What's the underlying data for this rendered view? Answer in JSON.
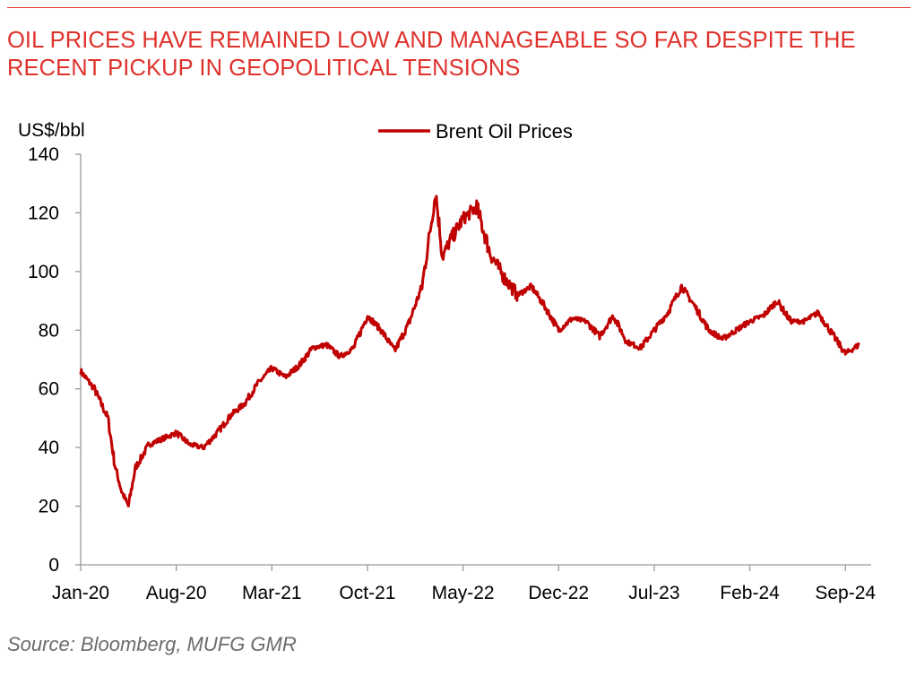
{
  "header": {
    "title": "OIL PRICES HAVE REMAINED LOW AND MANAGEABLE SO FAR DESPITE THE RECENT PICKUP IN GEOPOLITICAL TENSIONS"
  },
  "footer": {
    "source": "Source: Bloomberg, MUFG GMR"
  },
  "colors": {
    "accent": "#e0312b",
    "series": "#c00000",
    "axis": "#999999"
  },
  "chart_data": {
    "type": "line",
    "title": "OIL PRICES HAVE REMAINED LOW AND MANAGEABLE SO FAR DESPITE THE RECENT PICKUP IN GEOPOLITICAL TENSIONS",
    "xlabel": "",
    "ylabel": "US$/bbl",
    "ylim": [
      0,
      140
    ],
    "yticks": [
      "0",
      "20",
      "40",
      "60",
      "80",
      "100",
      "120",
      "140"
    ],
    "xticks": [
      "Jan-20",
      "Aug-20",
      "Mar-21",
      "Oct-21",
      "May-22",
      "Dec-22",
      "Jul-23",
      "Feb-24",
      "Sep-24"
    ],
    "grid": false,
    "legend": {
      "placement": "top-center",
      "entries": [
        "Brent Oil Prices"
      ]
    },
    "series": [
      {
        "name": "Brent Oil Prices",
        "x": [
          "2020-01",
          "2020-02",
          "2020-03",
          "2020-03",
          "2020-04",
          "2020-04",
          "2020-05",
          "2020-06",
          "2020-07",
          "2020-08",
          "2020-09",
          "2020-10",
          "2020-11",
          "2020-12",
          "2021-01",
          "2021-02",
          "2021-03",
          "2021-04",
          "2021-05",
          "2021-06",
          "2021-07",
          "2021-08",
          "2021-09",
          "2021-10",
          "2021-11",
          "2021-12",
          "2022-01",
          "2022-02",
          "2022-03",
          "2022-03",
          "2022-04",
          "2022-05",
          "2022-06",
          "2022-07",
          "2022-08",
          "2022-09",
          "2022-10",
          "2022-11",
          "2022-12",
          "2023-01",
          "2023-02",
          "2023-03",
          "2023-04",
          "2023-05",
          "2023-06",
          "2023-07",
          "2023-08",
          "2023-09",
          "2023-10",
          "2023-11",
          "2023-12",
          "2024-01",
          "2024-02",
          "2024-03",
          "2024-04",
          "2024-05",
          "2024-06",
          "2024-07",
          "2024-08",
          "2024-09",
          "2024-10"
        ],
        "values": [
          66,
          60,
          50,
          34,
          25,
          20,
          33,
          41,
          43,
          45,
          41,
          40,
          45,
          51,
          55,
          62,
          67,
          64,
          68,
          74,
          75,
          71,
          74,
          85,
          80,
          73,
          82,
          95,
          127,
          105,
          110,
          118,
          122,
          106,
          98,
          92,
          95,
          88,
          80,
          84,
          83,
          78,
          85,
          76,
          74,
          80,
          86,
          95,
          88,
          80,
          77,
          80,
          83,
          85,
          90,
          83,
          83,
          86,
          79,
          72,
          75
        ]
      }
    ]
  }
}
